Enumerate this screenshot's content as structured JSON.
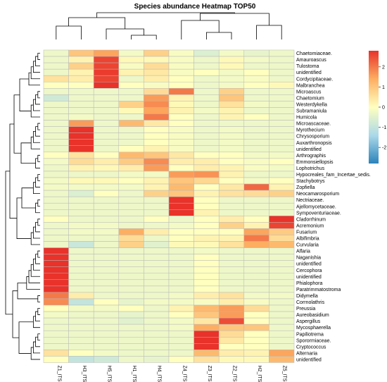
{
  "chart_data": {
    "type": "heatmap",
    "title": "Species abundance Heatmap TOP50",
    "columns": [
      "Z1_ITS",
      "H3_ITS",
      "H5_ITS",
      "H1_ITS",
      "H4_ITS",
      "Z4_ITS",
      "Z3_ITS",
      "Z2_ITS",
      "H2_ITS",
      "Z5_ITS"
    ],
    "rows": [
      "Chaetomiaceae.",
      "Amauroascus",
      "Tulostoma",
      "unidentified",
      "Cordycipitaceae.",
      "Malbranchea",
      "Microascus",
      "Chaetomium",
      "Westerdykella",
      "Subramaniula",
      "Humicola",
      "Microascaceae.",
      "Myrothecium",
      "Chrysosporium",
      "Auxarthronopsis",
      "unidentified",
      "Arthrographis",
      "Emmonsiellopsis",
      "Lophotrichus",
      "Hypocreales_fam_Incertae_sedis.",
      "Stachybotrys",
      "Zopfiella",
      "Neocamarosporium",
      "Nectriaceae.",
      "Ajellomycetaceae.",
      "Sympoventuriaceae.",
      "Cladorrhinum",
      "Acremonium",
      "Fusarium",
      "Albifimbria",
      "Curvularia",
      "Alfaria",
      "Naganishia",
      "unidentified",
      "Cercophora",
      "unidentified",
      "Phialophora",
      "Paratrimmatostroma",
      "Didymella",
      "Corrnolathris",
      "Preussia",
      "Aureobasidium",
      "Aspergillus",
      "Mycosphaerella",
      "Papiliotrema",
      "Sporormiaceae.",
      "Cryptococcus",
      "Alternaria",
      "unidentified"
    ],
    "values": [
      [
        -0.3,
        1.0,
        1.5,
        -0.2,
        0.8,
        -0.1,
        -0.6,
        -0.2,
        -0.4,
        -0.3
      ],
      [
        -0.3,
        0.2,
        2.6,
        0.1,
        0.1,
        -0.1,
        -0.3,
        0.1,
        -0.2,
        -0.3
      ],
      [
        -0.3,
        0.8,
        2.6,
        -0.1,
        0.6,
        -0.1,
        -0.3,
        0.1,
        -0.3,
        -0.3
      ],
      [
        -0.3,
        0.2,
        2.7,
        0.2,
        0.4,
        -0.1,
        0.0,
        -0.2,
        0.0,
        -0.3
      ],
      [
        0.5,
        0.3,
        2.6,
        -0.3,
        0.3,
        0.0,
        -0.3,
        -0.2,
        -0.1,
        -0.3
      ],
      [
        0.0,
        0.0,
        2.8,
        0.0,
        -0.1,
        0.0,
        -0.3,
        -0.2,
        0.0,
        0.1
      ],
      [
        -0.3,
        -0.3,
        -0.3,
        -0.3,
        0.6,
        2.0,
        -0.3,
        0.8,
        -0.3,
        -0.3
      ],
      [
        -0.8,
        -0.3,
        -0.3,
        -0.3,
        1.6,
        0.2,
        -0.3,
        1.0,
        -0.3,
        -0.3
      ],
      [
        -0.3,
        -0.3,
        -0.3,
        0.8,
        1.8,
        0.1,
        -0.3,
        0.5,
        -0.2,
        -0.3
      ],
      [
        -0.3,
        -0.3,
        -0.3,
        0.1,
        1.5,
        0.2,
        -0.2,
        0.2,
        -0.3,
        -0.3
      ],
      [
        -0.3,
        -0.2,
        -0.3,
        -0.3,
        2.0,
        0.0,
        -0.3,
        0.2,
        0.0,
        -0.3
      ],
      [
        -0.3,
        1.6,
        -0.3,
        1.2,
        0.4,
        0.0,
        -0.3,
        -0.3,
        -0.3,
        -0.3
      ],
      [
        -0.3,
        2.8,
        -0.3,
        -0.3,
        0.0,
        -0.1,
        -0.3,
        -0.2,
        -0.3,
        -0.3
      ],
      [
        -0.3,
        2.8,
        -0.3,
        -0.3,
        0.0,
        -0.1,
        -0.3,
        -0.2,
        -0.3,
        -0.3
      ],
      [
        -0.3,
        2.8,
        -0.3,
        -0.3,
        0.0,
        -0.1,
        -0.3,
        -0.2,
        -0.3,
        -0.3
      ],
      [
        -0.3,
        2.8,
        -0.3,
        0.0,
        0.2,
        -0.1,
        -0.3,
        -0.2,
        -0.3,
        -0.3
      ],
      [
        0.0,
        0.5,
        0.0,
        1.2,
        1.0,
        0.4,
        0.0,
        0.0,
        -0.2,
        -0.2
      ],
      [
        -0.2,
        0.6,
        0.3,
        0.9,
        1.8,
        0.3,
        0.3,
        0.0,
        -0.1,
        0.0
      ],
      [
        -0.3,
        0.2,
        0.1,
        0.3,
        1.6,
        0.0,
        0.3,
        0.2,
        -0.1,
        -0.2
      ],
      [
        -0.3,
        -0.3,
        -0.3,
        -0.2,
        -0.2,
        1.6,
        1.7,
        0.2,
        -0.3,
        -0.3
      ],
      [
        -0.2,
        0.1,
        0.1,
        0.0,
        0.2,
        1.0,
        0.7,
        0.0,
        -0.2,
        0.0
      ],
      [
        -0.2,
        -0.2,
        -0.2,
        -0.2,
        0.2,
        1.2,
        0.0,
        0.4,
        2.2,
        0.2
      ],
      [
        -0.3,
        -0.6,
        0.0,
        -0.3,
        0.8,
        1.0,
        0.2,
        0.5,
        0.6,
        0.8
      ],
      [
        -0.3,
        -0.3,
        -0.3,
        -0.3,
        -0.3,
        2.8,
        0.0,
        -0.3,
        -0.3,
        -0.3
      ],
      [
        -0.3,
        -0.3,
        -0.3,
        -0.3,
        -0.3,
        2.9,
        0.0,
        -0.3,
        -0.3,
        -0.3
      ],
      [
        -0.3,
        -0.3,
        -0.3,
        -0.3,
        -0.3,
        2.8,
        0.2,
        -0.3,
        -0.3,
        -0.3
      ],
      [
        0.0,
        -0.3,
        -0.3,
        -0.3,
        0.0,
        -0.3,
        0.0,
        0.3,
        0.0,
        2.8
      ],
      [
        -0.3,
        -0.2,
        -0.2,
        -0.3,
        -0.3,
        -0.2,
        0.0,
        0.8,
        0.2,
        2.6
      ],
      [
        -0.3,
        -0.2,
        -0.2,
        1.4,
        0.3,
        0.0,
        0.0,
        0.0,
        1.5,
        0.9
      ],
      [
        -0.3,
        -0.3,
        -0.3,
        0.6,
        -0.3,
        0.0,
        0.2,
        0.2,
        2.0,
        0.6
      ],
      [
        -0.3,
        -0.9,
        -0.3,
        0.8,
        -0.5,
        0.1,
        0.1,
        0.5,
        1.4,
        1.2
      ],
      [
        2.8,
        -0.3,
        -0.3,
        -0.3,
        -0.3,
        -0.3,
        -0.2,
        -0.3,
        -0.3,
        -0.3
      ],
      [
        2.8,
        -0.3,
        -0.3,
        -0.3,
        -0.3,
        -0.3,
        0.0,
        -0.3,
        -0.3,
        -0.3
      ],
      [
        2.8,
        -0.3,
        -0.3,
        -0.3,
        -0.3,
        -0.3,
        0.0,
        -0.3,
        -0.3,
        -0.3
      ],
      [
        2.8,
        -0.3,
        -0.3,
        -0.3,
        -0.3,
        -0.3,
        0.0,
        -0.3,
        -0.3,
        -0.3
      ],
      [
        2.8,
        -0.3,
        -0.3,
        -0.3,
        -0.3,
        -0.3,
        0.0,
        -0.3,
        -0.3,
        -0.3
      ],
      [
        2.8,
        -0.3,
        -0.3,
        -0.3,
        -0.3,
        -0.3,
        0.0,
        -0.3,
        -0.3,
        -0.3
      ],
      [
        2.8,
        -0.3,
        -0.3,
        -0.3,
        -0.3,
        -0.3,
        0.0,
        -0.3,
        -0.3,
        -0.3
      ],
      [
        2.0,
        0.3,
        -0.3,
        -0.3,
        -0.3,
        -0.2,
        0.3,
        0.5,
        -0.2,
        -0.2
      ],
      [
        1.8,
        -1.0,
        0.0,
        -0.4,
        -0.2,
        -0.2,
        -0.1,
        0.3,
        -0.1,
        -0.3
      ],
      [
        0.0,
        -0.2,
        -0.2,
        0.0,
        -0.3,
        0.2,
        1.2,
        1.6,
        0.6,
        -0.3
      ],
      [
        -0.2,
        -0.3,
        -0.3,
        -0.4,
        -0.3,
        0.0,
        1.0,
        1.6,
        0.0,
        -0.3
      ],
      [
        -0.3,
        -0.3,
        -0.3,
        -0.5,
        -0.3,
        -0.2,
        0.4,
        2.5,
        0.0,
        -0.3
      ],
      [
        -0.3,
        -0.3,
        -0.3,
        -0.3,
        -0.3,
        -0.2,
        1.4,
        1.0,
        1.0,
        -0.3
      ],
      [
        -0.3,
        -0.3,
        -0.3,
        -0.3,
        -0.3,
        -0.3,
        2.8,
        0.6,
        0.0,
        -0.3
      ],
      [
        -0.3,
        -0.3,
        -0.3,
        -0.3,
        -0.3,
        -0.3,
        2.9,
        0.4,
        0.0,
        -0.3
      ],
      [
        -0.3,
        -0.3,
        -0.3,
        -0.3,
        -0.3,
        -0.3,
        2.8,
        0.0,
        0.0,
        -0.3
      ],
      [
        0.5,
        0.0,
        -0.2,
        -0.3,
        -0.3,
        -0.3,
        1.2,
        0.3,
        0.2,
        1.5
      ],
      [
        0.0,
        -1.0,
        -0.8,
        -0.3,
        -0.4,
        0.0,
        0.5,
        0.1,
        0.1,
        1.2
      ]
    ],
    "color_scale": {
      "min": -2.8,
      "max": 2.8,
      "stops": [
        "#2b83ba",
        "#abd9e9",
        "#ffffbf",
        "#fdae61",
        "#e8322a"
      ],
      "ticks": [
        2,
        1,
        0,
        -1,
        -2
      ]
    },
    "legend_position": "top-right",
    "grid": true
  }
}
